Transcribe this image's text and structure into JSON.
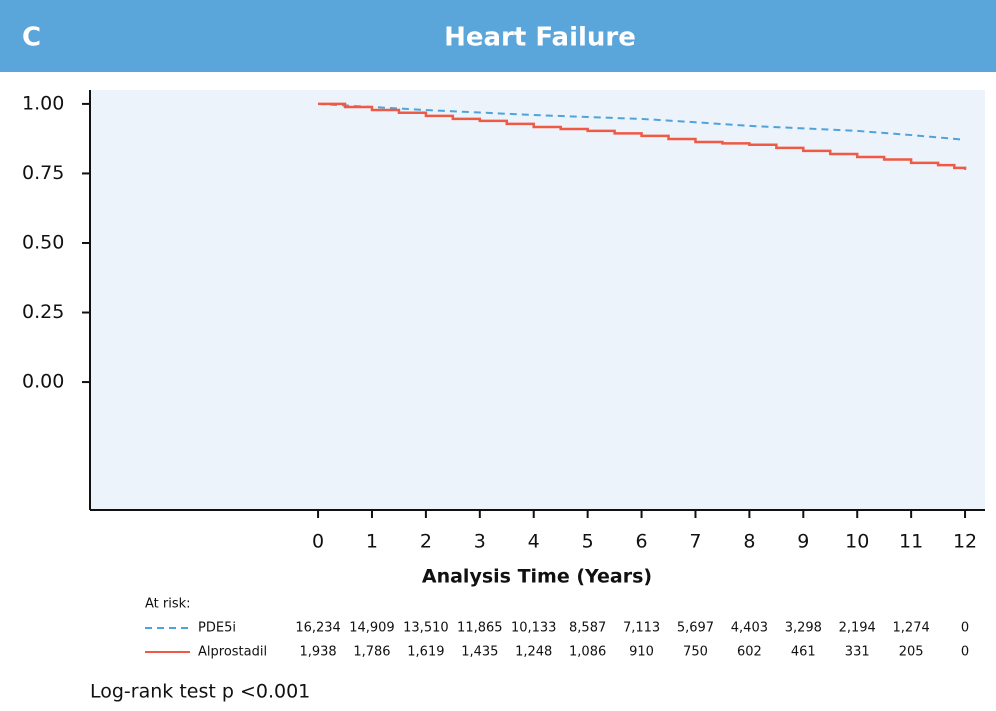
{
  "chart_data": {
    "type": "line",
    "panel_label": "C",
    "title": "Heart Failure",
    "x_label": "Analysis Time (Years)",
    "xlim": [
      -4.23,
      12.37
    ],
    "xticks": [
      0,
      1,
      2,
      3,
      4,
      5,
      6,
      7,
      8,
      9,
      10,
      11,
      12
    ],
    "ylim": [
      -0.46,
      1.05
    ],
    "yticks": [
      {
        "value": 1,
        "label": "1.00"
      },
      {
        "value": 0.75,
        "label": "0.75"
      },
      {
        "value": 0.5,
        "label": "0.50"
      },
      {
        "value": 0.25,
        "label": "0.25"
      },
      {
        "value": 0,
        "label": "0.00"
      }
    ],
    "grid": false,
    "series": [
      {
        "name": "PDE5i",
        "color": "#4fa3dc",
        "dashed": true,
        "step": false,
        "x": [
          0,
          1,
          2,
          3,
          4,
          5,
          6,
          7,
          8,
          9,
          10,
          11,
          12
        ],
        "values": [
          1.0,
          0.989,
          0.978,
          0.969,
          0.96,
          0.953,
          0.946,
          0.934,
          0.921,
          0.912,
          0.903,
          0.888,
          0.871
        ],
        "at_risk": [
          "16,234",
          "14,909",
          "13,510",
          "11,865",
          "10,133",
          "8,587",
          "7,113",
          "5,697",
          "4,403",
          "3,298",
          "2,194",
          "1,274",
          "0"
        ]
      },
      {
        "name": "Alprostadil",
        "color": "#ef5a45",
        "dashed": false,
        "step": true,
        "x": [
          0,
          0.5,
          1,
          1.5,
          2,
          2.5,
          3,
          3.5,
          4,
          4.5,
          5,
          5.5,
          6,
          6.5,
          7,
          7.5,
          8,
          8.5,
          9,
          9.5,
          10,
          10.5,
          11,
          11.5,
          11.8,
          12
        ],
        "values": [
          1.0,
          0.989,
          0.978,
          0.968,
          0.957,
          0.946,
          0.939,
          0.928,
          0.917,
          0.91,
          0.903,
          0.894,
          0.885,
          0.874,
          0.863,
          0.858,
          0.853,
          0.842,
          0.831,
          0.82,
          0.809,
          0.8,
          0.788,
          0.78,
          0.77,
          0.763
        ],
        "at_risk": [
          "1,938",
          "1,786",
          "1,619",
          "1,435",
          "1,248",
          "1,086",
          "910",
          "750",
          "602",
          "461",
          "331",
          "205",
          "0"
        ]
      }
    ],
    "at_risk_label": "At risk:",
    "annotation": "Log-rank test p <0.001"
  }
}
